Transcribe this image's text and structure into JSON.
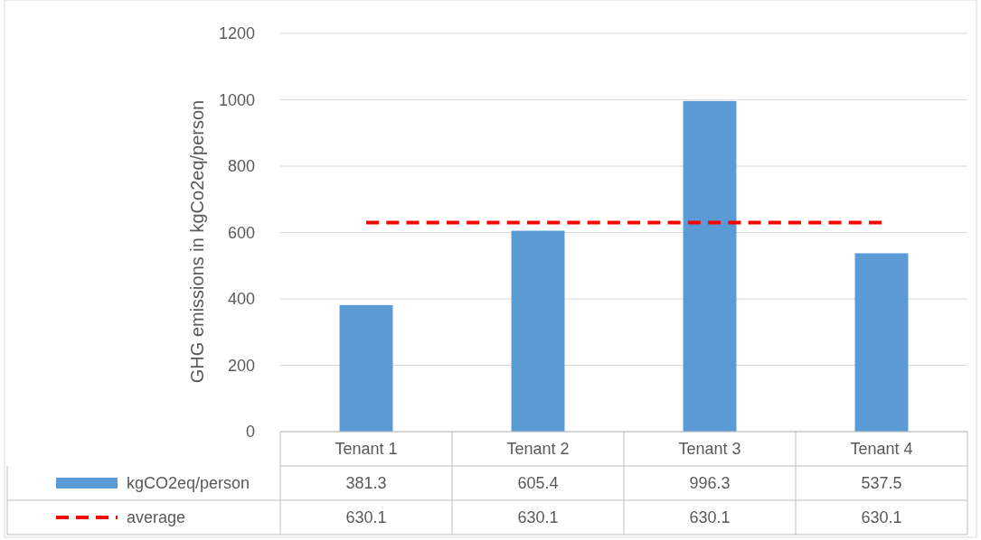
{
  "chart_data": {
    "type": "bar",
    "ylabel": "GHG emissions in kgCo2eq/person",
    "categories": [
      "Tenant 1",
      "Tenant 2",
      "Tenant 3",
      "Tenant 4"
    ],
    "series": [
      {
        "name": "kgCO2eq/person",
        "color": "#5b9bd5",
        "values": [
          381.3,
          605.4,
          996.3,
          537.5
        ]
      },
      {
        "name": "average",
        "type": "line",
        "color": "#ff0000",
        "line_style": "dashed",
        "values": [
          630.1,
          630.1,
          630.1,
          630.1
        ]
      }
    ],
    "ylim": [
      0,
      1200
    ],
    "yticks": [
      0,
      200,
      400,
      600,
      800,
      1000,
      1200
    ],
    "grid": "y",
    "legend": "bottom",
    "marker": "none",
    "data_labels": true
  }
}
